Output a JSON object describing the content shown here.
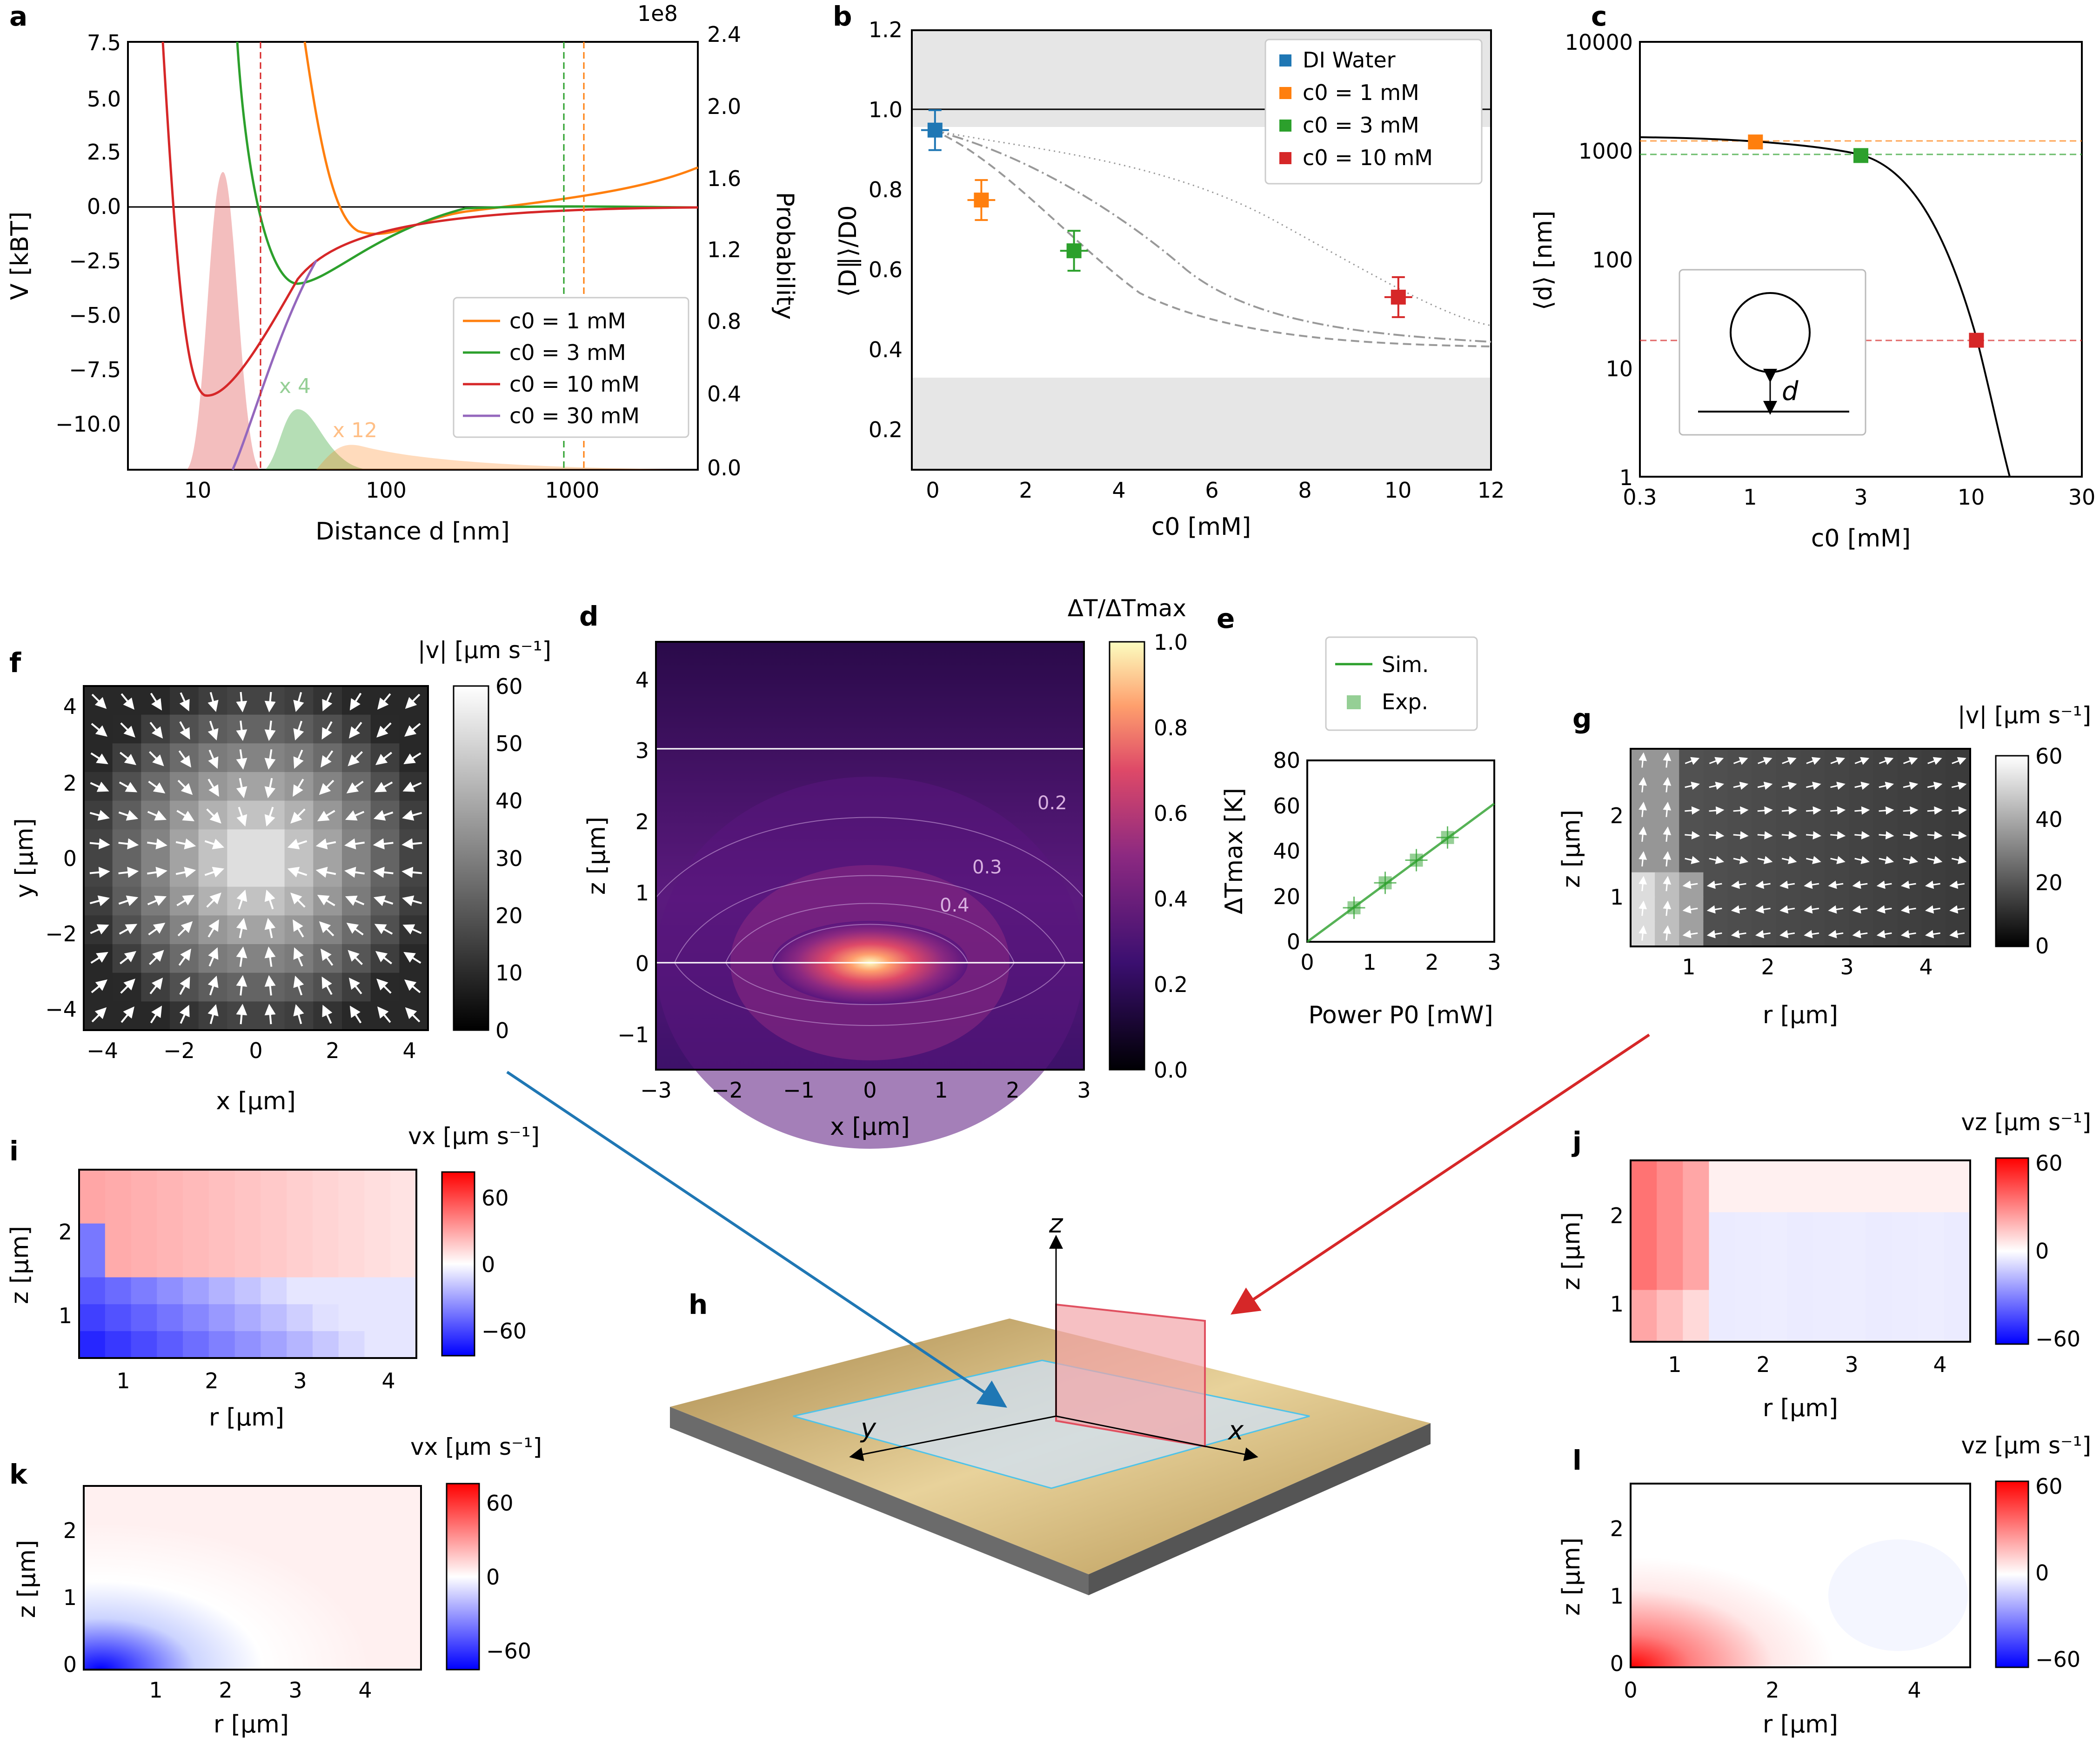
{
  "figure": {
    "panels": {
      "a": {
        "letter": "a",
        "xlabel": "Distance d [nm]",
        "ylabel_left": "V [kBT]",
        "ylabel_right": "Probability",
        "exponent_label": "1e8",
        "yticks_left": [
          "7.5",
          "5.0",
          "2.5",
          "0.0",
          "−2.5",
          "−5.0",
          "−7.5",
          "−10.0"
        ],
        "yticks_right": [
          "2.4",
          "2.0",
          "1.6",
          "1.2",
          "0.8",
          "0.4",
          "0.0"
        ],
        "xticks": [
          "10",
          "100",
          "1000"
        ],
        "legend": [
          "c0 = 1 mM",
          "c0 = 3 mM",
          "c0 = 10 mM",
          "c0 = 30 mM"
        ],
        "annotations": [
          "x 4",
          "x 12"
        ]
      },
      "b": {
        "letter": "b",
        "xlabel": "c0 [mM]",
        "ylabel": "⟨D∥⟩/D0",
        "yticks": [
          "1.2",
          "1.0",
          "0.8",
          "0.6",
          "0.4",
          "0.2"
        ],
        "xticks": [
          "0",
          "2",
          "4",
          "6",
          "8",
          "10",
          "12"
        ],
        "legend": [
          "DI Water",
          "c0 = 1 mM",
          "c0 = 3 mM",
          "c0 = 10 mM"
        ]
      },
      "c": {
        "letter": "c",
        "xlabel": "c0 [mM]",
        "ylabel": "⟨d⟩ [nm]",
        "yticks": [
          "10000",
          "1000",
          "100",
          "10",
          "1"
        ],
        "xticks": [
          "0.3",
          "1",
          "3",
          "10",
          "30"
        ],
        "inset_label": "d"
      },
      "d": {
        "letter": "d",
        "xlabel": "x [µm]",
        "ylabel": "z [µm]",
        "cbar_title": "ΔT/ΔTmax",
        "cbar_ticks": [
          "1.0",
          "0.8",
          "0.6",
          "0.4",
          "0.2",
          "0.0"
        ],
        "xticks": [
          "−3",
          "−2",
          "−1",
          "0",
          "1",
          "2",
          "3"
        ],
        "yticks": [
          "4",
          "3",
          "2",
          "1",
          "0",
          "−1"
        ],
        "contour_labels": [
          "0.2",
          "0.3",
          "0.4"
        ]
      },
      "e": {
        "letter": "e",
        "xlabel": "Power P0 [mW]",
        "ylabel": "ΔTmax [K]",
        "xticks": [
          "0",
          "1",
          "2",
          "3"
        ],
        "yticks": [
          "80",
          "60",
          "40",
          "20",
          "0"
        ],
        "legend": [
          "Sim.",
          "Exp."
        ]
      },
      "f": {
        "letter": "f",
        "xlabel": "x [µm]",
        "ylabel": "y [µm]",
        "cbar_title": "|v| [µm s⁻¹]",
        "cbar_ticks": [
          "60",
          "50",
          "40",
          "30",
          "20",
          "10",
          "0"
        ],
        "xticks": [
          "−4",
          "−2",
          "0",
          "2",
          "4"
        ],
        "yticks": [
          "4",
          "2",
          "0",
          "−2",
          "−4"
        ]
      },
      "g": {
        "letter": "g",
        "xlabel": "r [µm]",
        "ylabel": "z [µm]",
        "cbar_title": "|v| [µm s⁻¹]",
        "cbar_ticks": [
          "60",
          "40",
          "20",
          "0"
        ],
        "xticks": [
          "1",
          "2",
          "3",
          "4"
        ],
        "yticks": [
          "2",
          "1"
        ]
      },
      "h": {
        "letter": "h",
        "axes": [
          "z",
          "y",
          "x"
        ]
      },
      "i": {
        "letter": "i",
        "xlabel": "r [µm]",
        "ylabel": "z [µm]",
        "cbar_title": "vx [µm s⁻¹]",
        "cbar_ticks": [
          "60",
          "0",
          "−60"
        ],
        "xticks": [
          "1",
          "2",
          "3",
          "4"
        ],
        "yticks": [
          "2",
          "1"
        ]
      },
      "j": {
        "letter": "j",
        "xlabel": "r [µm]",
        "ylabel": "z [µm]",
        "cbar_title": "vz [µm s⁻¹]",
        "cbar_ticks": [
          "60",
          "0",
          "−60"
        ],
        "xticks": [
          "1",
          "2",
          "3",
          "4"
        ],
        "yticks": [
          "2",
          "1"
        ]
      },
      "k": {
        "letter": "k",
        "xlabel": "r [µm]",
        "ylabel": "z [µm]",
        "cbar_title": "vx [µm s⁻¹]",
        "cbar_ticks": [
          "60",
          "0",
          "−60"
        ],
        "xticks": [
          "1",
          "2",
          "3",
          "4"
        ],
        "yticks": [
          "2",
          "1",
          "0"
        ]
      },
      "l": {
        "letter": "l",
        "xlabel": "r [µm]",
        "ylabel": "z [µm]",
        "cbar_title": "vz [µm s⁻¹]",
        "cbar_ticks": [
          "60",
          "0",
          "−60"
        ],
        "xticks": [
          "0",
          "2",
          "4"
        ],
        "yticks": [
          "2",
          "1",
          "0"
        ]
      }
    }
  },
  "chart_data": [
    {
      "panel": "a",
      "type": "line",
      "xscale": "log",
      "xlim": [
        4,
        5000
      ],
      "ylim": [
        -12,
        7.8
      ],
      "y2lim": [
        0,
        2.4
      ],
      "series": [
        {
          "name": "c0 = 1 mM",
          "color": "#ff7f0e"
        },
        {
          "name": "c0 = 3 mM",
          "color": "#2ca02c"
        },
        {
          "name": "c0 = 10 mM",
          "color": "#d62728"
        },
        {
          "name": "c0 = 30 mM",
          "color": "#9467bd"
        }
      ],
      "vlines": [
        {
          "x": 21,
          "color": "#d62728"
        },
        {
          "x": 900,
          "color": "#2ca02c"
        },
        {
          "x": 1200,
          "color": "#ff7f0e"
        }
      ]
    },
    {
      "panel": "b",
      "type": "scatter",
      "xlim": [
        -0.5,
        12
      ],
      "ylim": [
        0.1,
        1.2
      ],
      "series": [
        {
          "name": "DI Water",
          "color": "#1f77b4",
          "x": [
            0
          ],
          "y": [
            0.95
          ],
          "yerr": [
            0.05
          ],
          "xerr": [
            0.3
          ]
        },
        {
          "name": "c0 = 1 mM",
          "color": "#ff7f0e",
          "x": [
            1
          ],
          "y": [
            0.775
          ],
          "yerr": [
            0.05
          ],
          "xerr": [
            0.3
          ]
        },
        {
          "name": "c0 = 3 mM",
          "color": "#2ca02c",
          "x": [
            3
          ],
          "y": [
            0.648
          ],
          "yerr": [
            0.05
          ],
          "xerr": [
            0.3
          ]
        },
        {
          "name": "c0 = 10 mM",
          "color": "#d62728",
          "x": [
            10
          ],
          "y": [
            0.532
          ],
          "yerr": [
            0.05
          ],
          "xerr": [
            0.3
          ]
        }
      ],
      "bands": [
        [
          0.96,
          1.2
        ],
        [
          0.1,
          0.325
        ]
      ],
      "hline": 1.0
    },
    {
      "panel": "c",
      "type": "line",
      "xscale": "log",
      "yscale": "log",
      "xlim": [
        0.3,
        30
      ],
      "ylim": [
        1,
        10000
      ],
      "points": [
        {
          "x": 1,
          "y": 1200,
          "color": "#ff7f0e"
        },
        {
          "x": 3,
          "y": 900,
          "color": "#2ca02c"
        },
        {
          "x": 10,
          "y": 18,
          "color": "#d62728"
        }
      ]
    },
    {
      "panel": "e",
      "type": "scatter",
      "xlim": [
        0,
        3
      ],
      "ylim": [
        0,
        80
      ],
      "series": [
        {
          "name": "Exp.",
          "color": "#2ca02c",
          "x": [
            0.75,
            1.25,
            1.75,
            2.25
          ],
          "y": [
            15,
            26,
            36,
            46
          ]
        },
        {
          "name": "Sim.",
          "color": "#2ca02c",
          "x": [
            0,
            3
          ],
          "y": [
            0,
            61
          ]
        }
      ]
    }
  ]
}
